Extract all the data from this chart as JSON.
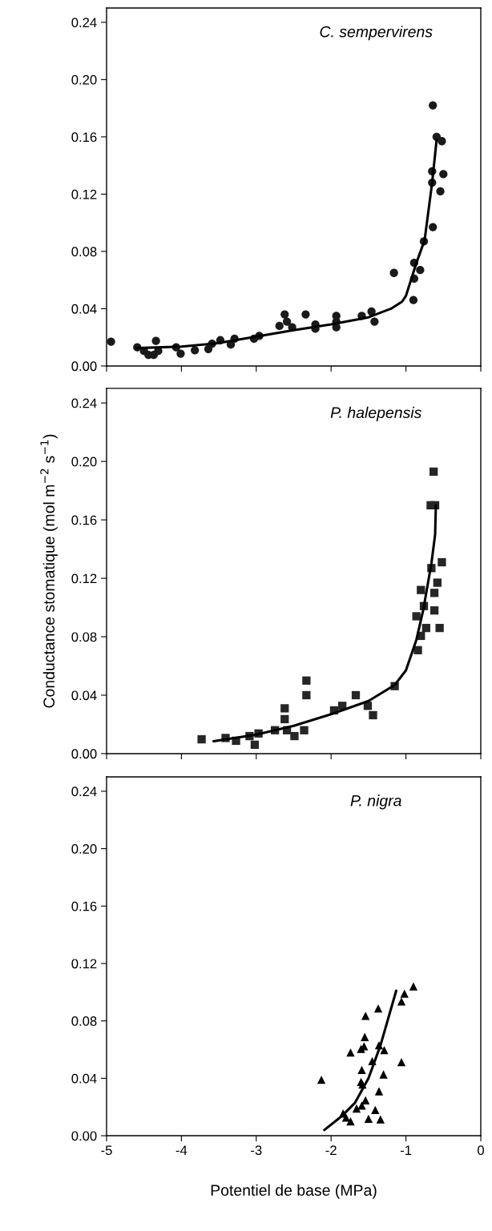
{
  "chart_data": [
    {
      "type": "scatter",
      "title": "C. sempervirens",
      "xlim": [
        -5,
        0
      ],
      "xticks": [
        -5,
        -4,
        -3,
        -2,
        -1,
        0
      ],
      "ylim": [
        0,
        0.25
      ],
      "yticks": [
        {
          "value": 0,
          "label": "0.00"
        },
        {
          "value": 0.04,
          "label": "0.04"
        },
        {
          "value": 0.08,
          "label": "0.08"
        },
        {
          "value": 0.12,
          "label": "0.12"
        },
        {
          "value": 0.16,
          "label": "0.16"
        },
        {
          "value": 0.2,
          "label": "0.20"
        },
        {
          "value": 0.24,
          "label": "0.24"
        }
      ],
      "tick_labels": "y",
      "grid": false,
      "legend": false,
      "series": [
        {
          "marker": "circle",
          "color": "#1a1a1a",
          "x": [
            -4.94,
            -4.59,
            -4.5,
            -4.44,
            -4.37,
            -4.34,
            -4.31,
            -4.07,
            -4.01,
            -3.82,
            -3.64,
            -3.59,
            -3.48,
            -3.34,
            -3.29,
            -3.03,
            -2.96,
            -2.69,
            -2.62,
            -2.59,
            -2.52,
            -2.34,
            -2.21,
            -2.21,
            -1.93,
            -1.93,
            -1.93,
            -1.59,
            -1.46,
            -1.42,
            -1.16,
            -0.9,
            -0.89,
            -0.81,
            -0.89,
            -0.76,
            -0.64,
            -0.65,
            -0.65,
            -0.54,
            -0.5,
            -0.59,
            -0.52,
            -0.64
          ],
          "values": [
            0.017,
            0.013,
            0.0105,
            0.0077,
            0.0077,
            0.0175,
            0.0105,
            0.013,
            0.0086,
            0.011,
            0.0118,
            0.0156,
            0.018,
            0.015,
            0.019,
            0.019,
            0.021,
            0.028,
            0.036,
            0.031,
            0.027,
            0.036,
            0.029,
            0.026,
            0.035,
            0.031,
            0.027,
            0.035,
            0.038,
            0.031,
            0.065,
            0.046,
            0.072,
            0.067,
            0.061,
            0.087,
            0.097,
            0.128,
            0.136,
            0.122,
            0.134,
            0.16,
            0.157,
            0.182
          ]
        },
        {
          "type": "line",
          "marker": "none",
          "color": "#000000",
          "x": [
            -4.6,
            -4.0,
            -3.5,
            -3.0,
            -2.5,
            -2.0,
            -1.5,
            -1.2,
            -1.05,
            -1.0,
            -0.86,
            -0.75,
            -0.65,
            -0.59
          ],
          "values": [
            0.0125,
            0.0135,
            0.016,
            0.0205,
            0.025,
            0.029,
            0.034,
            0.04,
            0.045,
            0.049,
            0.072,
            0.088,
            0.128,
            0.158
          ]
        }
      ]
    },
    {
      "type": "scatter",
      "title": "P. halepensis",
      "ylabel": "Conductance stomatique (mol m$^{−2}$ s$^{−1}$)",
      "xlim": [
        -5,
        0
      ],
      "xticks": [
        -5,
        -4,
        -3,
        -2,
        -1,
        0
      ],
      "ylim": [
        0,
        0.25
      ],
      "yticks": [
        {
          "value": 0,
          "label": "0.00"
        },
        {
          "value": 0.04,
          "label": "0.04"
        },
        {
          "value": 0.08,
          "label": "0.08"
        },
        {
          "value": 0.12,
          "label": "0.12"
        },
        {
          "value": 0.16,
          "label": "0.16"
        },
        {
          "value": 0.2,
          "label": "0.20"
        },
        {
          "value": 0.24,
          "label": "0.24"
        }
      ],
      "tick_labels": "y",
      "grid": false,
      "legend": false,
      "series": [
        {
          "marker": "square",
          "color": "#262626",
          "x": [
            -3.73,
            -3.41,
            -3.27,
            -3.09,
            -2.97,
            -3.02,
            -2.75,
            -2.62,
            -2.62,
            -2.59,
            -2.49,
            -2.36,
            -2.33,
            -2.33,
            -1.96,
            -1.85,
            -1.67,
            -1.51,
            -1.44,
            -1.15,
            -0.84,
            -0.8,
            -0.73,
            -0.86,
            -0.76,
            -0.62,
            -0.55,
            -0.8,
            -0.62,
            -0.58,
            -0.66,
            -0.52,
            -0.63,
            -0.67,
            -0.61
          ],
          "values": [
            0.0098,
            0.0107,
            0.0088,
            0.012,
            0.0138,
            0.0061,
            0.016,
            0.031,
            0.0236,
            0.016,
            0.012,
            0.016,
            0.05,
            0.04,
            0.0296,
            0.0327,
            0.04,
            0.0327,
            0.0263,
            0.0462,
            0.0708,
            0.0806,
            0.086,
            0.094,
            0.101,
            0.098,
            0.086,
            0.112,
            0.11,
            0.117,
            0.127,
            0.131,
            0.193,
            0.17,
            0.17
          ]
        },
        {
          "type": "line",
          "marker": "none",
          "color": "#000000",
          "x": [
            -3.57,
            -3.0,
            -2.5,
            -2.0,
            -1.5,
            -1.15,
            -1.0,
            -0.86,
            -0.77,
            -0.66,
            -0.61,
            -0.6
          ],
          "values": [
            0.0085,
            0.013,
            0.019,
            0.027,
            0.036,
            0.047,
            0.057,
            0.078,
            0.098,
            0.13,
            0.15,
            0.17
          ]
        }
      ]
    },
    {
      "type": "scatter",
      "title": "P. nigra",
      "xlabel": "Potentiel de base (MPa)",
      "xlim": [
        -5,
        0
      ],
      "xticks": [
        -5,
        -4,
        -3,
        -2,
        -1,
        0
      ],
      "ylim": [
        0,
        0.25
      ],
      "yticks": [
        {
          "value": 0,
          "label": "0.00"
        },
        {
          "value": 0.04,
          "label": "0.04"
        },
        {
          "value": 0.08,
          "label": "0.08"
        },
        {
          "value": 0.12,
          "label": "0.12"
        },
        {
          "value": 0.16,
          "label": "0.16"
        },
        {
          "value": 0.2,
          "label": "0.20"
        },
        {
          "value": 0.24,
          "label": "0.24"
        }
      ],
      "grid": false,
      "legend": false,
      "series": [
        {
          "marker": "triangle",
          "color": "#000000",
          "x": [
            -2.13,
            -1.84,
            -1.8,
            -1.74,
            -1.74,
            -1.6,
            -1.56,
            -1.55,
            -1.54,
            -1.37,
            -1.59,
            -1.6,
            -1.58,
            -1.54,
            -1.59,
            -1.66,
            -1.41,
            -1.5,
            -1.34,
            -1.36,
            -1.3,
            -1.45,
            -1.36,
            -1.29,
            -1.06,
            -1.06,
            -1.02,
            -0.9
          ],
          "values": [
            0.039,
            0.0155,
            0.0127,
            0.01,
            0.058,
            0.0605,
            0.0623,
            0.0688,
            0.0835,
            0.0887,
            0.0458,
            0.0375,
            0.0357,
            0.0247,
            0.021,
            0.019,
            0.018,
            0.0118,
            0.0114,
            0.031,
            0.0427,
            0.052,
            0.063,
            0.0596,
            0.0513,
            0.0936,
            0.099,
            0.104
          ]
        },
        {
          "type": "line",
          "marker": "none",
          "color": "#000000",
          "x": [
            -2.09,
            -1.85,
            -1.68,
            -1.5,
            -1.34,
            -1.13
          ],
          "values": [
            0.004,
            0.014,
            0.023,
            0.04,
            0.063,
            0.101
          ]
        }
      ]
    }
  ]
}
